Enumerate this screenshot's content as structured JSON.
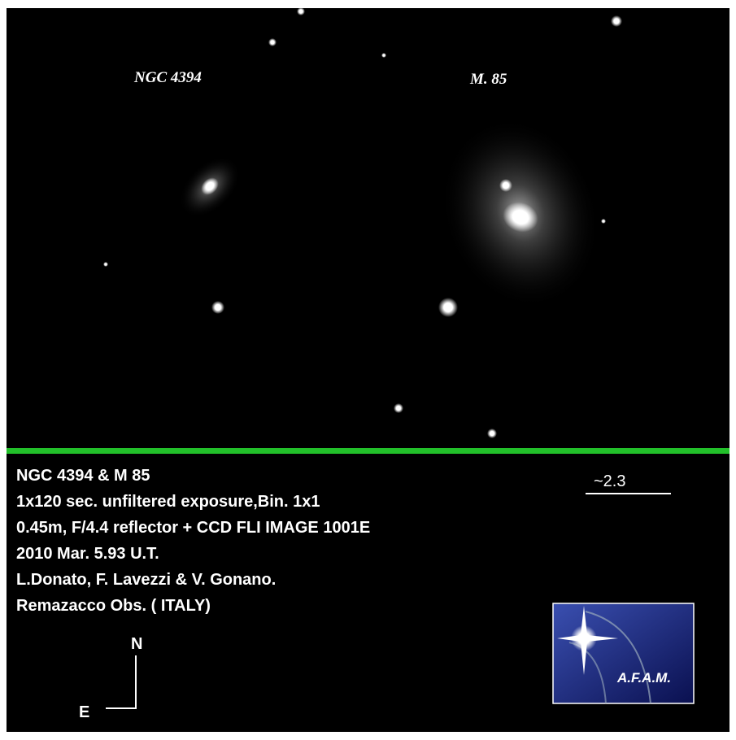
{
  "labels": {
    "left_galaxy": "NGC 4394",
    "right_galaxy": "M. 85"
  },
  "caption": {
    "lines": [
      "NGC 4394 & M 85",
      "1x120 sec. unfiltered exposure,Bin. 1x1",
      "0.45m, F/4.4 reflector + CCD FLI IMAGE 1001E",
      "2010 Mar. 5.93 U.T.",
      "L.Donato, F. Lavezzi & V. Gonano.",
      "Remazacco Obs. ( ITALY)"
    ]
  },
  "scale": "~2.3",
  "compass": {
    "north": "N",
    "east": "E"
  },
  "logo": "A.F.A.M."
}
